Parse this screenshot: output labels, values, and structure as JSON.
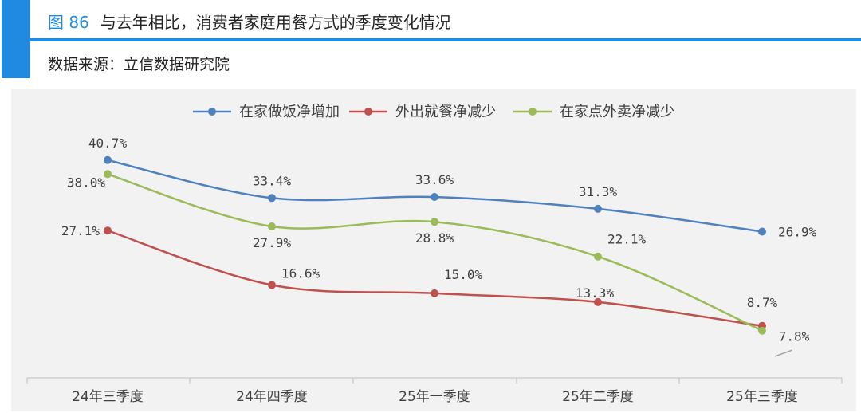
{
  "header": {
    "figure_number": "图 86",
    "title": "与去年相比，消费者家庭用餐方式的季度变化情况",
    "source": "数据来源：立信数据研究院"
  },
  "chart_data": {
    "type": "line",
    "categories": [
      "24年三季度",
      "24年四季度",
      "25年一季度",
      "25年二季度",
      "25年三季度"
    ],
    "series": [
      {
        "name": "在家做饭净增加",
        "color": "#4f81bd",
        "values": [
          40.7,
          33.4,
          33.6,
          31.3,
          26.9
        ],
        "labels": [
          "40.7%",
          "33.4%",
          "33.6%",
          "31.3%",
          "26.9%"
        ]
      },
      {
        "name": "外出就餐净减少",
        "color": "#c0504d",
        "values": [
          27.1,
          16.6,
          15.0,
          13.3,
          8.7
        ],
        "labels": [
          "27.1%",
          "16.6%",
          "15.0%",
          "13.3%",
          "8.7%"
        ]
      },
      {
        "name": "在家点外卖净减少",
        "color": "#9bbb59",
        "values": [
          38.0,
          27.9,
          28.8,
          22.1,
          7.8
        ],
        "labels": [
          "38.0%",
          "27.9%",
          "28.8%",
          "22.1%",
          "7.8%"
        ]
      }
    ],
    "smoothed": true,
    "legend_position": "top-center",
    "grid": false
  }
}
